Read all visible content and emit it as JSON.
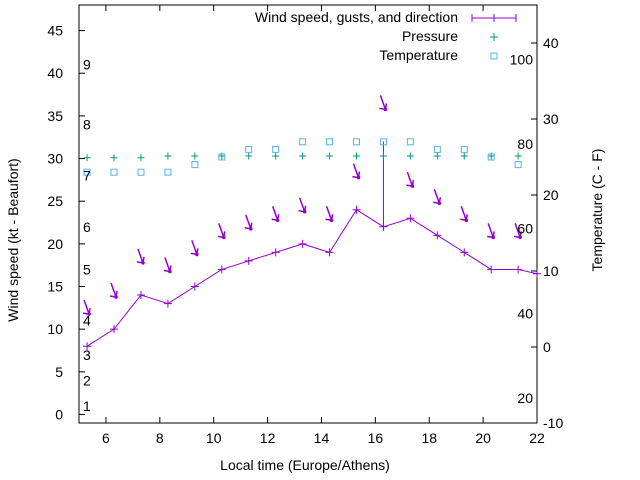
{
  "chart_data": {
    "type": "line",
    "xlabel": "Local time (Europe/Athens)",
    "ylabel": "Wind speed (kt - Beaufort)",
    "y2label": "Temperature (C - F)",
    "xlim": [
      5,
      22
    ],
    "ylim": [
      -1,
      48
    ],
    "y2lim": [
      -10,
      45
    ],
    "x_ticks": [
      6,
      8,
      10,
      12,
      14,
      16,
      18,
      20,
      22
    ],
    "y_ticks": [
      0,
      5,
      10,
      15,
      20,
      25,
      30,
      35,
      40,
      45
    ],
    "y2_ticks": [
      -10,
      0,
      10,
      20,
      30,
      40
    ],
    "beaufort_labels": [
      {
        "text": "1",
        "kt": 1
      },
      {
        "text": "2",
        "kt": 4
      },
      {
        "text": "3",
        "kt": 7
      },
      {
        "text": "4",
        "kt": 11
      },
      {
        "text": "5",
        "kt": 17
      },
      {
        "text": "6",
        "kt": 22
      },
      {
        "text": "7",
        "kt": 28
      },
      {
        "text": "8",
        "kt": 34
      },
      {
        "text": "9",
        "kt": 41
      }
    ],
    "fahrenheit_labels": [
      {
        "text": "20",
        "c": -6.7
      },
      {
        "text": "40",
        "c": 4.4
      },
      {
        "text": "60",
        "c": 15.6
      },
      {
        "text": "80",
        "c": 26.7
      },
      {
        "text": "100",
        "c": 37.8
      }
    ],
    "legend": [
      {
        "label": "Wind speed, gusts, and direction",
        "color": "#9400d3"
      },
      {
        "label": "Pressure",
        "color": "#009e73"
      },
      {
        "label": "Temperature",
        "color": "#56b4e9"
      }
    ],
    "series": [
      {
        "name": "Wind speed, gusts, and direction",
        "color": "#9400d3",
        "axis": "y",
        "x": [
          5.3,
          6.3,
          7.3,
          8.3,
          9.3,
          10.3,
          11.3,
          12.3,
          13.3,
          14.3,
          15.3,
          16.3,
          17.3,
          18.3,
          19.3,
          20.3,
          21.3,
          22
        ],
        "values": [
          8,
          10,
          14,
          13,
          15,
          17,
          18,
          19,
          20,
          19,
          24,
          22,
          23,
          21,
          19,
          17,
          17,
          16.5
        ],
        "gusts": [
          {
            "x": 16.3,
            "value": 32
          }
        ],
        "arrows": [
          {
            "x": 5.3,
            "value": 12
          },
          {
            "x": 6.3,
            "value": 14
          },
          {
            "x": 7.3,
            "value": 18
          },
          {
            "x": 8.3,
            "value": 17
          },
          {
            "x": 9.3,
            "value": 19
          },
          {
            "x": 10.3,
            "value": 21
          },
          {
            "x": 11.3,
            "value": 22
          },
          {
            "x": 12.3,
            "value": 23
          },
          {
            "x": 13.3,
            "value": 24
          },
          {
            "x": 14.3,
            "value": 23
          },
          {
            "x": 15.3,
            "value": 28
          },
          {
            "x": 16.3,
            "value": 36
          },
          {
            "x": 17.3,
            "value": 27
          },
          {
            "x": 18.3,
            "value": 25
          },
          {
            "x": 19.3,
            "value": 23
          },
          {
            "x": 20.3,
            "value": 21
          },
          {
            "x": 21.3,
            "value": 21
          }
        ]
      },
      {
        "name": "Pressure",
        "color": "#009e73",
        "axis": "y",
        "x": [
          5.3,
          6.3,
          7.3,
          8.3,
          9.3,
          10.3,
          11.3,
          12.3,
          13.3,
          14.3,
          15.3,
          16.3,
          17.3,
          18.3,
          19.3,
          20.3,
          21.3
        ],
        "values": [
          30.1,
          30.1,
          30.1,
          30.3,
          30.3,
          30.3,
          30.3,
          30.3,
          30.3,
          30.3,
          30.3,
          30.3,
          30.3,
          30.3,
          30.3,
          30.3,
          30.3
        ]
      },
      {
        "name": "Temperature",
        "color": "#56b4e9",
        "axis": "y2",
        "x": [
          5.3,
          6.3,
          7.3,
          8.3,
          9.3,
          10.3,
          11.3,
          12.3,
          13.3,
          14.3,
          15.3,
          16.3,
          17.3,
          18.3,
          19.3,
          20.3,
          21.3
        ],
        "values": [
          23,
          23,
          23,
          23,
          24,
          25,
          26,
          26,
          27,
          27,
          27,
          27,
          27,
          26,
          26,
          25,
          24
        ]
      }
    ]
  }
}
